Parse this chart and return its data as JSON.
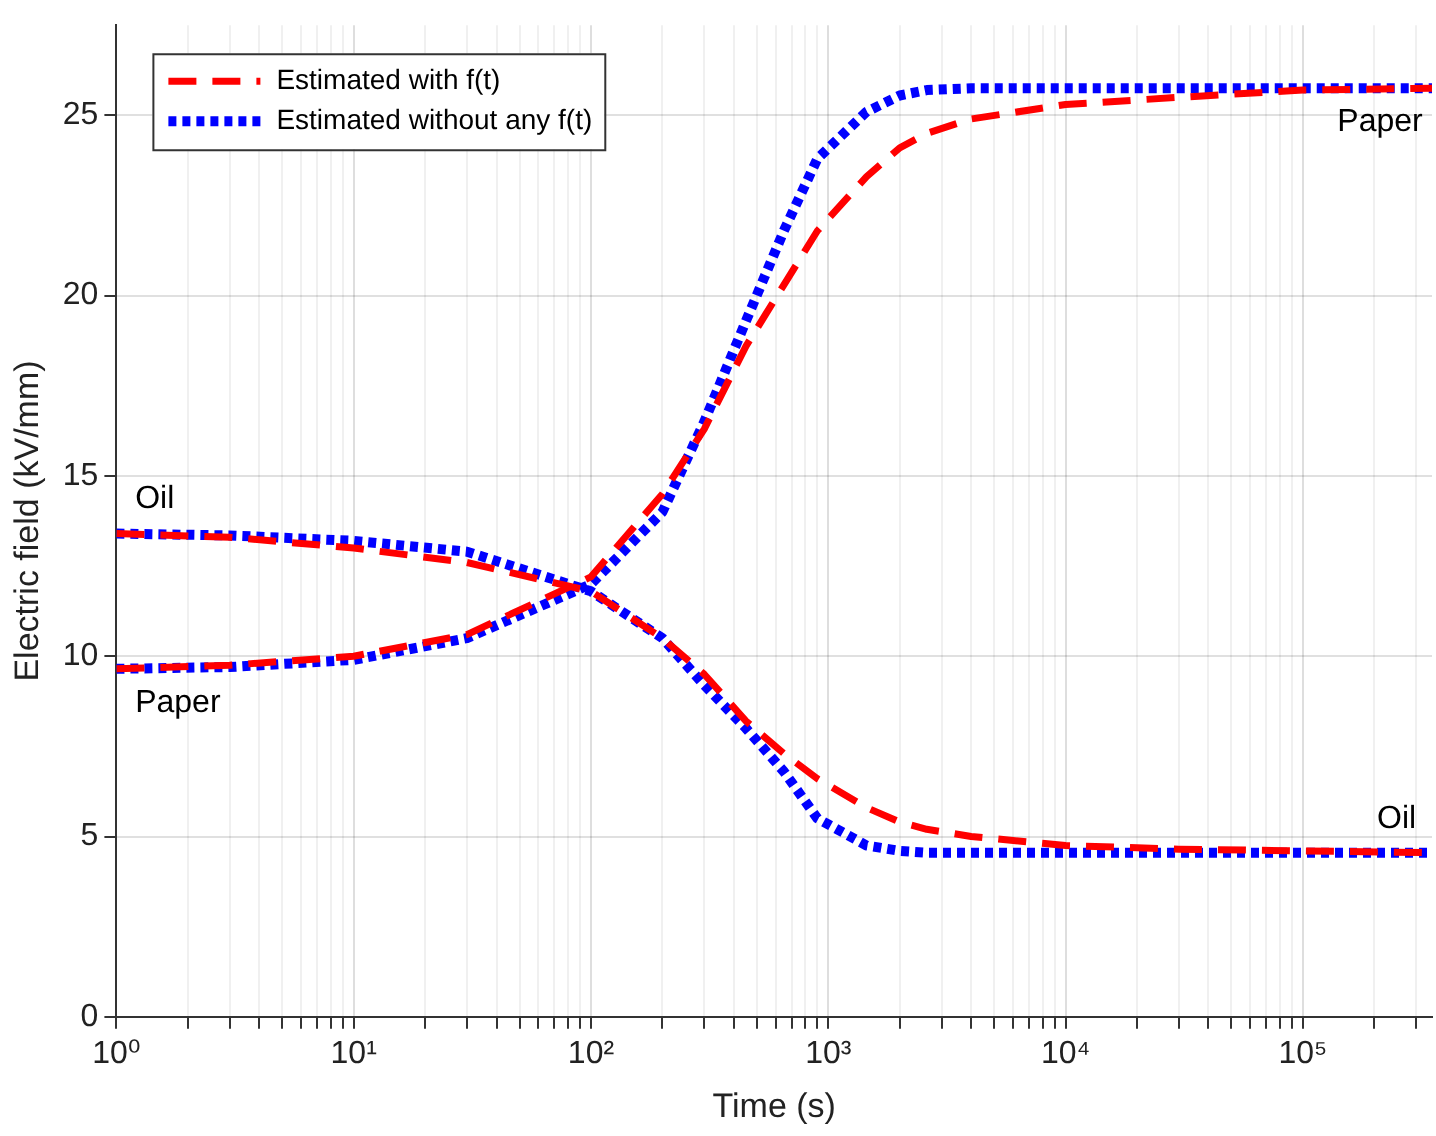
{
  "chart_data": {
    "type": "line",
    "xlabel": "Time (s)",
    "ylabel": "Electric field (kV/mm)",
    "log": "x",
    "grid": true,
    "legend": "top left",
    "marker": "none",
    "xlim": [
      1,
      350000
    ],
    "ylim": [
      0,
      27.5
    ],
    "xticks": [
      {
        "value": 1,
        "label": "10⁰"
      },
      {
        "value": 2,
        "label": null
      },
      {
        "value": 3,
        "label": null
      },
      {
        "value": 4,
        "label": null
      },
      {
        "value": 5,
        "label": null
      },
      {
        "value": 6,
        "label": null
      },
      {
        "value": 7,
        "label": null
      },
      {
        "value": 8,
        "label": null
      },
      {
        "value": 9,
        "label": null
      },
      {
        "value": 10,
        "label": "10¹"
      },
      {
        "value": 20,
        "label": null
      },
      {
        "value": 30,
        "label": null
      },
      {
        "value": 40,
        "label": null
      },
      {
        "value": 50,
        "label": null
      },
      {
        "value": 60,
        "label": null
      },
      {
        "value": 70,
        "label": null
      },
      {
        "value": 80,
        "label": null
      },
      {
        "value": 90,
        "label": null
      },
      {
        "value": 100,
        "label": "10²"
      },
      {
        "value": 200,
        "label": null
      },
      {
        "value": 300,
        "label": null
      },
      {
        "value": 400,
        "label": null
      },
      {
        "value": 500,
        "label": null
      },
      {
        "value": 600,
        "label": null
      },
      {
        "value": 700,
        "label": null
      },
      {
        "value": 800,
        "label": null
      },
      {
        "value": 900,
        "label": null
      },
      {
        "value": 1000,
        "label": "10³"
      },
      {
        "value": 2000,
        "label": null
      },
      {
        "value": 3000,
        "label": null
      },
      {
        "value": 4000,
        "label": null
      },
      {
        "value": 5000,
        "label": null
      },
      {
        "value": 6000,
        "label": null
      },
      {
        "value": 7000,
        "label": null
      },
      {
        "value": 8000,
        "label": null
      },
      {
        "value": 9000,
        "label": null
      },
      {
        "value": 10000,
        "label": "10⁴"
      },
      {
        "value": 20000,
        "label": null
      },
      {
        "value": 30000,
        "label": null
      },
      {
        "value": 40000,
        "label": null
      },
      {
        "value": 50000,
        "label": null
      },
      {
        "value": 60000,
        "label": null
      },
      {
        "value": 70000,
        "label": null
      },
      {
        "value": 80000,
        "label": null
      },
      {
        "value": 90000,
        "label": null
      },
      {
        "value": 100000,
        "label": "10⁵"
      },
      {
        "value": 200000,
        "label": null
      },
      {
        "value": 300000,
        "label": null
      }
    ],
    "yticks": [
      0,
      5,
      10,
      15,
      20,
      25
    ],
    "series": [
      {
        "name": "Estimated with f(t)",
        "color": "#ff0000",
        "line_style": "dashed",
        "x": [
          1,
          3,
          10,
          30,
          100,
          200,
          300,
          450,
          650,
          900,
          1450,
          2000,
          2600,
          4000,
          10000,
          30000,
          100000,
          350000
        ],
        "values": [
          9.65,
          9.75,
          10.0,
          10.6,
          12.2,
          14.5,
          16.3,
          18.6,
          20.3,
          21.8,
          23.3,
          24.1,
          24.5,
          24.9,
          25.3,
          25.5,
          25.7,
          25.75
        ]
      },
      {
        "color": "#ff0000",
        "line_style": "dashed",
        "x": [
          1,
          3,
          10,
          30,
          100,
          200,
          300,
          450,
          650,
          900,
          1450,
          2000,
          2600,
          4000,
          10000,
          30000,
          100000,
          350000
        ],
        "values": [
          13.4,
          13.3,
          13.0,
          12.6,
          11.8,
          10.5,
          9.5,
          8.2,
          7.3,
          6.6,
          5.8,
          5.4,
          5.2,
          5.0,
          4.75,
          4.65,
          4.6,
          4.55
        ]
      },
      {
        "name": "Estimated without any f(t)",
        "color": "#0000ff",
        "line_style": "dotted",
        "x": [
          1,
          3,
          10,
          30,
          100,
          200,
          300,
          450,
          650,
          900,
          1450,
          2000,
          2600,
          4000,
          10000,
          30000,
          100000,
          350000
        ],
        "values": [
          9.65,
          9.7,
          9.9,
          10.5,
          12.0,
          14.0,
          16.5,
          19.3,
          21.8,
          23.8,
          25.1,
          25.55,
          25.7,
          25.75,
          25.75,
          25.75,
          25.75,
          25.75
        ]
      },
      {
        "color": "#0000ff",
        "line_style": "dotted",
        "x": [
          1,
          3,
          10,
          30,
          100,
          200,
          300,
          450,
          650,
          900,
          1450,
          2000,
          2600,
          4000,
          10000,
          30000,
          100000,
          350000
        ],
        "values": [
          13.4,
          13.35,
          13.2,
          12.9,
          11.8,
          10.5,
          9.2,
          8.0,
          6.8,
          5.5,
          4.75,
          4.6,
          4.55,
          4.55,
          4.55,
          4.55,
          4.55,
          4.55
        ]
      }
    ],
    "annotations": [
      {
        "text": "Oil",
        "x": 1.2,
        "y": 13.4
      },
      {
        "text": "Paper",
        "x": 1.2,
        "y": 9.65
      },
      {
        "text": "Paper",
        "x": 320000,
        "y": 25.75
      },
      {
        "text": "Oil",
        "x": 300000,
        "y": 4.55
      }
    ]
  }
}
